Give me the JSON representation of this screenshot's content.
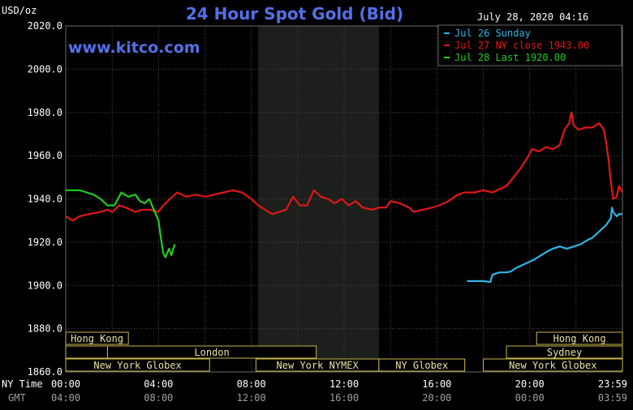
{
  "header": {
    "title": "24 Hour Spot Gold (Bid)",
    "unit": "USD/oz",
    "timestamp": "July 28, 2020 04:16",
    "website": "www.kitco.com"
  },
  "legend": {
    "items": [
      {
        "label": "Jul 26 Sunday",
        "color": "#2fb5e8"
      },
      {
        "label": "Jul 27 NY close 1943.00",
        "color": "#e01818"
      },
      {
        "label": "Jul 28 Last 1920.00",
        "color": "#22cc22"
      }
    ]
  },
  "sessions": [
    {
      "label": "Hong Kong",
      "row": 0,
      "start": 0,
      "end": 2.7
    },
    {
      "label": "Hong Kong",
      "row": 0,
      "start": 20.3,
      "end": 24
    },
    {
      "label": "London",
      "row": 1,
      "start": 1.8,
      "end": 10.8
    },
    {
      "label": "Sydney",
      "row": 1,
      "start": 19,
      "end": 24
    },
    {
      "label": "New York Globex",
      "row": 2,
      "start": 0,
      "end": 6.2
    },
    {
      "label": "New York NYMEX",
      "row": 2,
      "start": 8.2,
      "end": 13.5
    },
    {
      "label": "NY Globex",
      "row": 2,
      "start": 13.5,
      "end": 17.2
    },
    {
      "label": "New York Globex",
      "row": 2,
      "start": 18,
      "end": 24
    }
  ],
  "time_axis": {
    "ny_label": "NY Time",
    "gmt_label": "GMT",
    "ny_ticks": [
      "00:00",
      "04:00",
      "08:00",
      "12:00",
      "16:00",
      "20:00",
      "23:59"
    ],
    "gmt_ticks": [
      "04:00",
      "08:00",
      "12:00",
      "16:00",
      "20:00",
      "00:00",
      "03:59"
    ],
    "tick_hours": [
      0,
      4,
      8,
      12,
      16,
      20,
      24
    ]
  },
  "chart_data": {
    "type": "line",
    "title": "24 Hour Spot Gold (Bid)",
    "ylabel": "USD/oz",
    "xlabel": "NY Time",
    "ylim": [
      1860,
      2020
    ],
    "xlim_hours": [
      0,
      24
    ],
    "yticks": [
      1860,
      1880,
      1900,
      1920,
      1940,
      1960,
      1980,
      2000,
      2020
    ],
    "ytick_labels": [
      "1860.0",
      "1880.0",
      "1900.0",
      "1920.0",
      "1940.0",
      "1960.0",
      "1980.0",
      "2000.0",
      "2020.0"
    ],
    "grid": true,
    "shaded_region_hours": [
      8.3,
      13.5
    ],
    "series": [
      {
        "name": "Jul 26 Sunday",
        "color": "#2fb5e8",
        "points": [
          [
            17.3,
            1902
          ],
          [
            18,
            1902
          ],
          [
            18.3,
            1901.5
          ],
          [
            18.4,
            1905
          ],
          [
            18.7,
            1906
          ],
          [
            19,
            1906
          ],
          [
            19.2,
            1906.5
          ],
          [
            19.4,
            1908
          ],
          [
            19.8,
            1910
          ],
          [
            20.2,
            1912
          ],
          [
            20.5,
            1914
          ],
          [
            20.8,
            1916
          ],
          [
            21,
            1917
          ],
          [
            21.3,
            1918
          ],
          [
            21.6,
            1917
          ],
          [
            21.9,
            1918
          ],
          [
            22.2,
            1919
          ],
          [
            22.5,
            1921
          ],
          [
            22.7,
            1922
          ],
          [
            22.9,
            1924
          ],
          [
            23.1,
            1926
          ],
          [
            23.3,
            1928
          ],
          [
            23.5,
            1931
          ],
          [
            23.55,
            1936
          ],
          [
            23.6,
            1934
          ],
          [
            23.75,
            1932
          ],
          [
            23.85,
            1933
          ],
          [
            24,
            1933
          ]
        ]
      },
      {
        "name": "Jul 27 NY close 1943.00",
        "color": "#e01818",
        "points": [
          [
            0,
            1932
          ],
          [
            0.3,
            1930
          ],
          [
            0.6,
            1932
          ],
          [
            1,
            1933
          ],
          [
            1.5,
            1934
          ],
          [
            1.8,
            1935
          ],
          [
            2,
            1934
          ],
          [
            2.3,
            1937
          ],
          [
            2.6,
            1936
          ],
          [
            3,
            1934
          ],
          [
            3.3,
            1935
          ],
          [
            3.6,
            1935
          ],
          [
            4,
            1934
          ],
          [
            4.2,
            1937
          ],
          [
            4.5,
            1940
          ],
          [
            4.8,
            1943
          ],
          [
            5.2,
            1941
          ],
          [
            5.6,
            1942
          ],
          [
            6,
            1941
          ],
          [
            6.4,
            1942
          ],
          [
            6.8,
            1943
          ],
          [
            7.2,
            1944
          ],
          [
            7.6,
            1943
          ],
          [
            8,
            1940
          ],
          [
            8.3,
            1937
          ],
          [
            8.6,
            1935
          ],
          [
            8.9,
            1933
          ],
          [
            9.2,
            1934
          ],
          [
            9.5,
            1935
          ],
          [
            9.8,
            1941
          ],
          [
            10.1,
            1937
          ],
          [
            10.4,
            1937
          ],
          [
            10.7,
            1944
          ],
          [
            11,
            1941
          ],
          [
            11.3,
            1940
          ],
          [
            11.6,
            1938
          ],
          [
            11.9,
            1940
          ],
          [
            12.2,
            1937
          ],
          [
            12.5,
            1939
          ],
          [
            12.8,
            1936
          ],
          [
            13.2,
            1935
          ],
          [
            13.5,
            1936
          ],
          [
            13.8,
            1936
          ],
          [
            14,
            1939
          ],
          [
            14.4,
            1938
          ],
          [
            14.8,
            1936
          ],
          [
            15,
            1934
          ],
          [
            15.4,
            1935
          ],
          [
            15.8,
            1936
          ],
          [
            16.1,
            1937
          ],
          [
            16.5,
            1939
          ],
          [
            16.9,
            1942
          ],
          [
            17.2,
            1943
          ],
          [
            17.6,
            1943
          ],
          [
            18,
            1944
          ],
          [
            18.4,
            1943
          ],
          [
            18.6,
            1944
          ],
          [
            19,
            1946
          ],
          [
            19.3,
            1950
          ],
          [
            19.6,
            1954
          ],
          [
            19.9,
            1959
          ],
          [
            20.1,
            1963
          ],
          [
            20.4,
            1962
          ],
          [
            20.7,
            1964
          ],
          [
            21,
            1963
          ],
          [
            21.3,
            1965
          ],
          [
            21.5,
            1972
          ],
          [
            21.7,
            1975
          ],
          [
            21.8,
            1980
          ],
          [
            21.9,
            1974
          ],
          [
            22.1,
            1972
          ],
          [
            22.4,
            1973
          ],
          [
            22.7,
            1973
          ],
          [
            23,
            1975
          ],
          [
            23.2,
            1972
          ],
          [
            23.3,
            1966
          ],
          [
            23.4,
            1958
          ],
          [
            23.5,
            1948
          ],
          [
            23.6,
            1940
          ],
          [
            23.75,
            1941
          ],
          [
            23.85,
            1946
          ],
          [
            24,
            1943
          ]
        ]
      },
      {
        "name": "Jul 28 Last 1920.00",
        "color": "#22cc22",
        "points": [
          [
            0,
            1944
          ],
          [
            0.3,
            1944
          ],
          [
            0.6,
            1944
          ],
          [
            0.9,
            1943
          ],
          [
            1.2,
            1942
          ],
          [
            1.5,
            1940
          ],
          [
            1.8,
            1937
          ],
          [
            2.1,
            1937
          ],
          [
            2.4,
            1943
          ],
          [
            2.7,
            1941
          ],
          [
            3,
            1942
          ],
          [
            3.2,
            1939
          ],
          [
            3.4,
            1938
          ],
          [
            3.6,
            1940
          ],
          [
            3.8,
            1935
          ],
          [
            4.0,
            1930
          ],
          [
            4.1,
            1922
          ],
          [
            4.2,
            1915
          ],
          [
            4.3,
            1913
          ],
          [
            4.45,
            1917
          ],
          [
            4.55,
            1914
          ],
          [
            4.7,
            1919
          ]
        ]
      }
    ]
  }
}
